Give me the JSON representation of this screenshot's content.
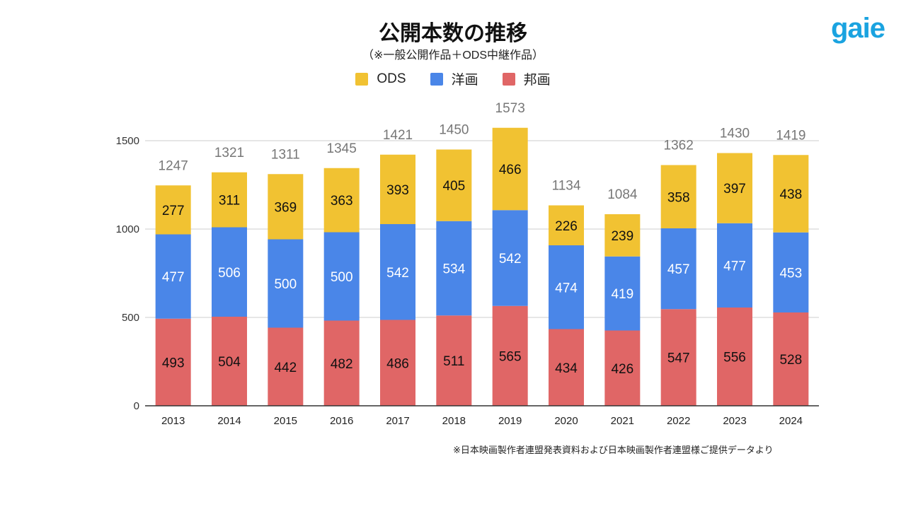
{
  "logo": "gaie",
  "chart_data": {
    "type": "bar",
    "stacked": true,
    "title": "公開本数の推移",
    "subtitle": "（※一般公開作品＋ODS中継作品）",
    "categories": [
      "2013",
      "2014",
      "2015",
      "2016",
      "2017",
      "2018",
      "2019",
      "2020",
      "2021",
      "2022",
      "2023",
      "2024"
    ],
    "series": [
      {
        "name": "邦画",
        "color": "#e06666",
        "values": [
          493,
          504,
          442,
          482,
          486,
          511,
          565,
          434,
          426,
          547,
          556,
          528
        ]
      },
      {
        "name": "洋画",
        "color": "#4a86e8",
        "values": [
          477,
          506,
          500,
          500,
          542,
          534,
          542,
          474,
          419,
          457,
          477,
          453
        ]
      },
      {
        "name": "ODS",
        "color": "#f1c232",
        "values": [
          277,
          311,
          369,
          363,
          393,
          405,
          466,
          226,
          239,
          358,
          397,
          438
        ]
      }
    ],
    "totals": [
      1247,
      1321,
      1311,
      1345,
      1421,
      1450,
      1573,
      1134,
      1084,
      1362,
      1430,
      1419
    ],
    "legend_order": [
      "ODS",
      "洋画",
      "邦画"
    ],
    "legend_placement": "top",
    "yticks": [
      0,
      500,
      1000,
      1500
    ],
    "ylim": [
      0,
      1500
    ],
    "grid": true,
    "xlabel": "",
    "ylabel": ""
  },
  "footnote": "※日本映画製作者連盟発表資料および日本映画製作者連盟様ご提供データより"
}
